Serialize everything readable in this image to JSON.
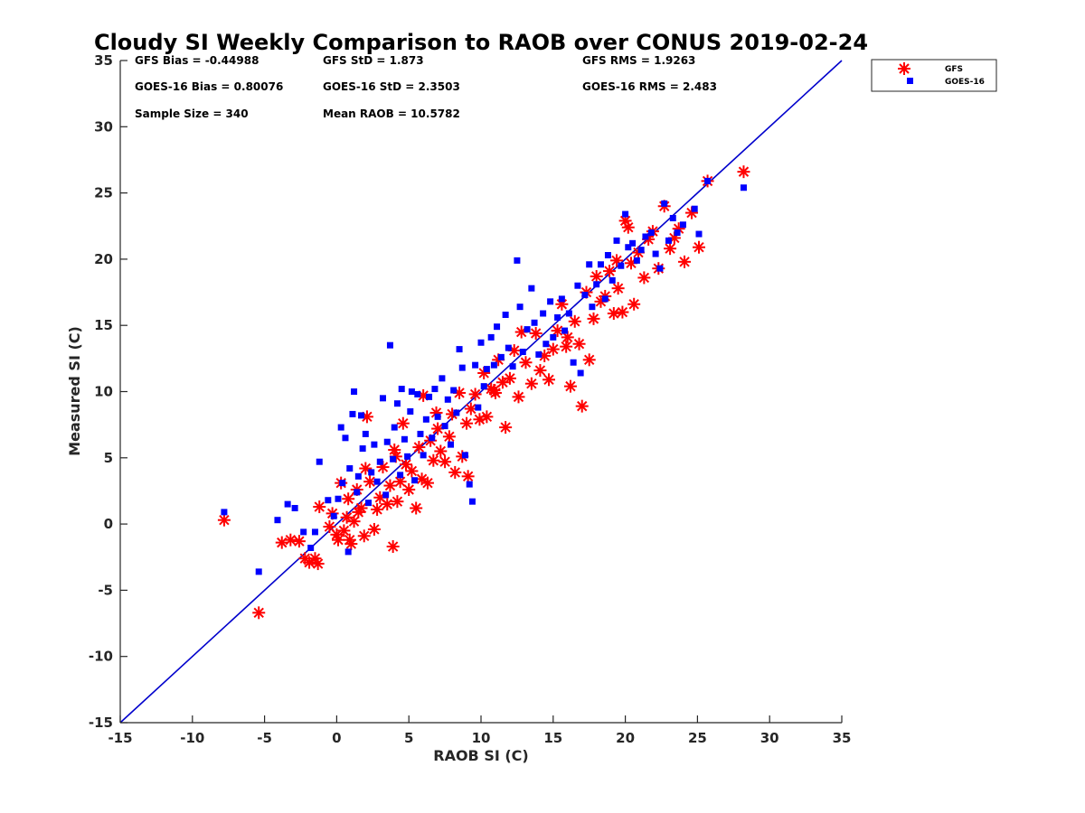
{
  "chart_data": {
    "type": "scatter",
    "title": "Cloudy SI Weekly Comparison to RAOB over CONUS 2019-02-24",
    "xlabel": "RAOB SI (C)",
    "ylabel": "Measured SI (C)",
    "xlim": [
      -15,
      35
    ],
    "ylim": [
      -15,
      35
    ],
    "xticks": [
      "-15",
      "-10",
      "-5",
      "0",
      "5",
      "10",
      "15",
      "20",
      "25",
      "30",
      "35"
    ],
    "yticks": [
      "-15",
      "-10",
      "-5",
      "0",
      "5",
      "10",
      "15",
      "20",
      "25",
      "30",
      "35"
    ],
    "grid": false,
    "legend_position": "outside top-right",
    "reference_line": {
      "label": "1:1 line",
      "x": [
        -15,
        35
      ],
      "y": [
        -15,
        35
      ],
      "color": "#0000cc"
    },
    "stats": [
      {
        "label": "GFS Bias = -0.44988"
      },
      {
        "label": "GFS StD = 1.873"
      },
      {
        "label": "GFS RMS = 1.9263"
      },
      {
        "label": "GOES-16 Bias = 0.80076"
      },
      {
        "label": "GOES-16 StD = 2.3503"
      },
      {
        "label": "GOES-16 RMS = 2.483"
      },
      {
        "label": "Sample Size = 340"
      },
      {
        "label": "Mean RAOB = 10.5782"
      }
    ],
    "series": [
      {
        "name": "GFS",
        "marker": "asterisk",
        "color": "#ff0000",
        "points": [
          [
            -7.8,
            0.3
          ],
          [
            -5.4,
            -6.7
          ],
          [
            -3.8,
            -1.4
          ],
          [
            -3.2,
            -1.2
          ],
          [
            -2.6,
            -1.3
          ],
          [
            -2.2,
            -2.6
          ],
          [
            -1.9,
            -2.9
          ],
          [
            -1.5,
            -2.6
          ],
          [
            -1.3,
            -3.0
          ],
          [
            -1.2,
            1.3
          ],
          [
            -0.5,
            -0.2
          ],
          [
            -0.3,
            0.8
          ],
          [
            0.0,
            -0.8
          ],
          [
            0.1,
            -1.2
          ],
          [
            0.3,
            3.1
          ],
          [
            0.5,
            -0.5
          ],
          [
            0.7,
            0.5
          ],
          [
            0.8,
            1.9
          ],
          [
            0.9,
            -1.2
          ],
          [
            1.0,
            -1.5
          ],
          [
            1.2,
            0.2
          ],
          [
            1.4,
            2.6
          ],
          [
            1.5,
            0.9
          ],
          [
            1.7,
            1.2
          ],
          [
            1.9,
            -0.9
          ],
          [
            2.0,
            4.2
          ],
          [
            2.1,
            8.1
          ],
          [
            2.3,
            3.2
          ],
          [
            2.6,
            -0.4
          ],
          [
            2.8,
            1.1
          ],
          [
            3.0,
            2.0
          ],
          [
            3.2,
            4.3
          ],
          [
            3.5,
            1.5
          ],
          [
            3.7,
            2.9
          ],
          [
            3.9,
            -1.7
          ],
          [
            4.0,
            5.6
          ],
          [
            4.2,
            1.7
          ],
          [
            4.4,
            3.2
          ],
          [
            4.6,
            7.6
          ],
          [
            4.8,
            4.5
          ],
          [
            5.0,
            2.6
          ],
          [
            5.2,
            4.0
          ],
          [
            5.5,
            1.2
          ],
          [
            5.7,
            5.8
          ],
          [
            5.9,
            3.4
          ],
          [
            6.0,
            9.7
          ],
          [
            6.3,
            3.1
          ],
          [
            6.5,
            6.3
          ],
          [
            6.7,
            4.8
          ],
          [
            7.0,
            7.2
          ],
          [
            7.2,
            5.5
          ],
          [
            7.5,
            4.7
          ],
          [
            7.8,
            6.6
          ],
          [
            8.0,
            8.3
          ],
          [
            8.2,
            3.9
          ],
          [
            8.5,
            9.9
          ],
          [
            8.7,
            5.1
          ],
          [
            9.0,
            7.6
          ],
          [
            9.1,
            3.6
          ],
          [
            9.3,
            8.7
          ],
          [
            9.6,
            9.8
          ],
          [
            9.9,
            7.9
          ],
          [
            10.2,
            11.4
          ],
          [
            10.4,
            8.1
          ],
          [
            10.7,
            10.2
          ],
          [
            11.0,
            9.9
          ],
          [
            11.2,
            12.4
          ],
          [
            11.5,
            10.7
          ],
          [
            11.7,
            7.3
          ],
          [
            12.0,
            11.0
          ],
          [
            12.3,
            13.1
          ],
          [
            12.6,
            9.6
          ],
          [
            12.8,
            14.5
          ],
          [
            13.1,
            12.2
          ],
          [
            13.5,
            10.6
          ],
          [
            13.8,
            14.4
          ],
          [
            14.1,
            11.6
          ],
          [
            14.4,
            12.7
          ],
          [
            14.7,
            10.9
          ],
          [
            15.0,
            13.2
          ],
          [
            15.3,
            14.6
          ],
          [
            15.6,
            16.6
          ],
          [
            15.9,
            13.4
          ],
          [
            16.2,
            10.4
          ],
          [
            16.5,
            15.3
          ],
          [
            16.8,
            13.6
          ],
          [
            17.0,
            8.9
          ],
          [
            17.3,
            17.5
          ],
          [
            17.5,
            12.4
          ],
          [
            17.8,
            15.5
          ],
          [
            18.0,
            18.7
          ],
          [
            18.3,
            16.8
          ],
          [
            18.6,
            17.2
          ],
          [
            18.9,
            19.1
          ],
          [
            19.2,
            15.9
          ],
          [
            19.5,
            17.8
          ],
          [
            19.8,
            16.0
          ],
          [
            20.0,
            22.9
          ],
          [
            20.2,
            22.4
          ],
          [
            20.4,
            19.7
          ],
          [
            20.6,
            16.6
          ],
          [
            20.9,
            20.5
          ],
          [
            21.3,
            18.6
          ],
          [
            21.6,
            21.5
          ],
          [
            21.9,
            22.1
          ],
          [
            22.3,
            19.3
          ],
          [
            22.7,
            24.0
          ],
          [
            23.1,
            20.8
          ],
          [
            23.4,
            21.6
          ],
          [
            23.7,
            22.3
          ],
          [
            24.1,
            19.8
          ],
          [
            24.6,
            23.5
          ],
          [
            25.1,
            20.9
          ],
          [
            25.7,
            25.9
          ],
          [
            28.2,
            26.6
          ],
          [
            4.1,
            5.1
          ],
          [
            6.9,
            8.4
          ],
          [
            10.9,
            10.1
          ],
          [
            16.0,
            14.1
          ],
          [
            19.4,
            19.9
          ]
        ]
      },
      {
        "name": "GOES-16",
        "marker": "square",
        "color": "#0000ff",
        "points": [
          [
            -7.8,
            0.9
          ],
          [
            -5.4,
            -3.6
          ],
          [
            -4.1,
            0.3
          ],
          [
            -3.4,
            1.5
          ],
          [
            -2.9,
            1.2
          ],
          [
            -2.3,
            -0.6
          ],
          [
            -1.8,
            -1.8
          ],
          [
            -1.5,
            -0.6
          ],
          [
            -1.2,
            4.7
          ],
          [
            -0.6,
            1.8
          ],
          [
            -0.2,
            0.6
          ],
          [
            0.1,
            1.9
          ],
          [
            0.3,
            7.3
          ],
          [
            0.4,
            3.1
          ],
          [
            0.6,
            6.5
          ],
          [
            0.8,
            -2.1
          ],
          [
            0.9,
            4.2
          ],
          [
            1.1,
            8.3
          ],
          [
            1.2,
            10.0
          ],
          [
            1.4,
            2.4
          ],
          [
            1.5,
            3.6
          ],
          [
            1.7,
            8.2
          ],
          [
            1.8,
            5.7
          ],
          [
            2.0,
            6.8
          ],
          [
            2.2,
            1.6
          ],
          [
            2.4,
            3.9
          ],
          [
            2.6,
            6.0
          ],
          [
            2.8,
            3.2
          ],
          [
            3.0,
            4.7
          ],
          [
            3.2,
            9.5
          ],
          [
            3.4,
            2.2
          ],
          [
            3.5,
            6.2
          ],
          [
            3.7,
            13.5
          ],
          [
            3.9,
            4.9
          ],
          [
            4.0,
            7.3
          ],
          [
            4.2,
            9.1
          ],
          [
            4.4,
            3.7
          ],
          [
            4.5,
            10.2
          ],
          [
            4.7,
            6.4
          ],
          [
            4.9,
            5.1
          ],
          [
            5.1,
            8.5
          ],
          [
            5.2,
            10.0
          ],
          [
            5.4,
            3.3
          ],
          [
            5.6,
            9.8
          ],
          [
            5.8,
            6.8
          ],
          [
            6.0,
            5.2
          ],
          [
            6.2,
            7.9
          ],
          [
            6.4,
            9.6
          ],
          [
            6.6,
            6.5
          ],
          [
            6.8,
            10.2
          ],
          [
            7.0,
            8.1
          ],
          [
            7.3,
            11.0
          ],
          [
            7.5,
            7.4
          ],
          [
            7.7,
            9.4
          ],
          [
            7.9,
            6.0
          ],
          [
            8.1,
            10.1
          ],
          [
            8.3,
            8.4
          ],
          [
            8.5,
            13.2
          ],
          [
            8.7,
            11.8
          ],
          [
            8.9,
            5.2
          ],
          [
            9.2,
            3.0
          ],
          [
            9.4,
            1.7
          ],
          [
            9.6,
            12.0
          ],
          [
            9.8,
            8.8
          ],
          [
            10.0,
            13.7
          ],
          [
            10.2,
            10.4
          ],
          [
            10.4,
            11.7
          ],
          [
            10.7,
            14.1
          ],
          [
            10.9,
            12.0
          ],
          [
            11.1,
            14.9
          ],
          [
            11.4,
            12.6
          ],
          [
            11.7,
            15.8
          ],
          [
            11.9,
            13.3
          ],
          [
            12.2,
            11.9
          ],
          [
            12.5,
            19.9
          ],
          [
            12.7,
            16.4
          ],
          [
            12.9,
            13.0
          ],
          [
            13.2,
            14.7
          ],
          [
            13.5,
            17.8
          ],
          [
            13.7,
            15.2
          ],
          [
            14.0,
            12.8
          ],
          [
            14.3,
            15.9
          ],
          [
            14.5,
            13.6
          ],
          [
            14.8,
            16.8
          ],
          [
            15.0,
            14.1
          ],
          [
            15.3,
            15.6
          ],
          [
            15.6,
            17.0
          ],
          [
            15.8,
            14.6
          ],
          [
            16.1,
            15.9
          ],
          [
            16.4,
            12.2
          ],
          [
            16.7,
            18.0
          ],
          [
            16.9,
            11.4
          ],
          [
            17.2,
            17.3
          ],
          [
            17.5,
            19.6
          ],
          [
            17.7,
            16.4
          ],
          [
            18.0,
            18.1
          ],
          [
            18.3,
            19.6
          ],
          [
            18.6,
            17.0
          ],
          [
            18.8,
            20.3
          ],
          [
            19.1,
            18.4
          ],
          [
            19.4,
            21.4
          ],
          [
            19.7,
            19.5
          ],
          [
            20.0,
            23.4
          ],
          [
            20.2,
            20.9
          ],
          [
            20.5,
            21.2
          ],
          [
            20.8,
            19.9
          ],
          [
            21.1,
            20.7
          ],
          [
            21.4,
            21.7
          ],
          [
            21.8,
            22.0
          ],
          [
            22.1,
            20.4
          ],
          [
            22.4,
            19.3
          ],
          [
            22.7,
            24.2
          ],
          [
            23.0,
            21.4
          ],
          [
            23.3,
            23.1
          ],
          [
            23.6,
            22.0
          ],
          [
            24.0,
            22.6
          ],
          [
            24.8,
            23.8
          ],
          [
            25.1,
            21.9
          ],
          [
            25.7,
            25.9
          ],
          [
            28.2,
            25.4
          ]
        ]
      }
    ]
  }
}
